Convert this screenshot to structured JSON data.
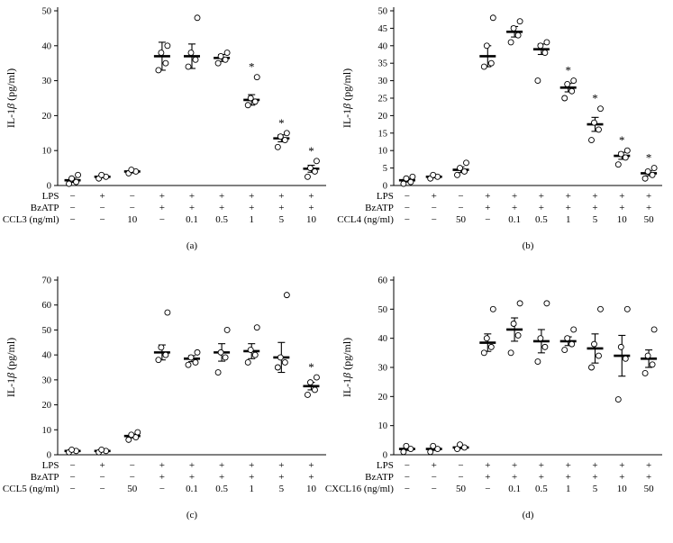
{
  "figure": {
    "background": "#ffffff",
    "ink_color": "#000000",
    "sig_marker": "*",
    "sig_color": "#555555"
  },
  "chart_data": [
    {
      "type": "scatter",
      "label": "(a)",
      "ylabel": "IL-1β (pg/ml)",
      "ymax": 50,
      "ystep": 10,
      "rows": [
        {
          "label": "LPS",
          "values": [
            "−",
            "+",
            "−",
            "+",
            "+",
            "+",
            "+",
            "+",
            "+"
          ]
        },
        {
          "label": "BzATP",
          "values": [
            "−",
            "−",
            "−",
            "+",
            "+",
            "+",
            "+",
            "+",
            "+"
          ]
        },
        {
          "label": "CCL3 (ng/ml)",
          "values": [
            "−",
            "−",
            "10",
            "−",
            "0.1",
            "0.5",
            "1",
            "5",
            "10"
          ]
        }
      ],
      "groups": [
        {
          "mean": 1.5,
          "err": 0.6,
          "points": [
            0.5,
            1,
            2,
            3
          ],
          "sig": false
        },
        {
          "mean": 2.5,
          "err": 0.3,
          "points": [
            2,
            2.5,
            3
          ],
          "sig": false
        },
        {
          "mean": 4,
          "err": 0.4,
          "points": [
            3.5,
            4,
            4.5
          ],
          "sig": false
        },
        {
          "mean": 37,
          "err": 4,
          "points": [
            33,
            35,
            38,
            40
          ],
          "sig": false
        },
        {
          "mean": 37,
          "err": 3.5,
          "points": [
            34,
            36,
            38,
            48
          ],
          "sig": false
        },
        {
          "mean": 36.5,
          "err": 1,
          "points": [
            35,
            36,
            37,
            38
          ],
          "sig": false
        },
        {
          "mean": 24.5,
          "err": 1.5,
          "points": [
            23,
            24,
            25,
            31
          ],
          "sig": true
        },
        {
          "mean": 13.5,
          "err": 1,
          "points": [
            11,
            13,
            14,
            15
          ],
          "sig": true
        },
        {
          "mean": 4.8,
          "err": 1,
          "points": [
            2.5,
            4,
            5,
            7
          ],
          "sig": true
        }
      ]
    },
    {
      "type": "scatter",
      "label": "(b)",
      "ylabel": "IL-1β (pg/ml)",
      "ymax": 50,
      "ystep": 5,
      "rows": [
        {
          "label": "LPS",
          "values": [
            "−",
            "+",
            "−",
            "+",
            "+",
            "+",
            "+",
            "+",
            "+",
            "+"
          ]
        },
        {
          "label": "BzATP",
          "values": [
            "−",
            "−",
            "−",
            "+",
            "+",
            "+",
            "+",
            "+",
            "+",
            "+"
          ]
        },
        {
          "label": "CCL4 (ng/ml)",
          "values": [
            "−",
            "−",
            "50",
            "−",
            "0.1",
            "0.5",
            "1",
            "5",
            "10",
            "50"
          ]
        }
      ],
      "groups": [
        {
          "mean": 1.5,
          "err": 0.5,
          "points": [
            0.5,
            1,
            2,
            2.5
          ],
          "sig": false
        },
        {
          "mean": 2.5,
          "err": 0.3,
          "points": [
            2,
            2.5,
            3
          ],
          "sig": false
        },
        {
          "mean": 4.5,
          "err": 0.8,
          "points": [
            3,
            4,
            5,
            6.5
          ],
          "sig": false
        },
        {
          "mean": 37,
          "err": 3,
          "points": [
            34,
            35,
            40,
            48
          ],
          "sig": false
        },
        {
          "mean": 44,
          "err": 1.5,
          "points": [
            41,
            43,
            45,
            47
          ],
          "sig": false
        },
        {
          "mean": 39,
          "err": 1.5,
          "points": [
            30,
            38,
            40,
            41
          ],
          "sig": false
        },
        {
          "mean": 28,
          "err": 1.2,
          "points": [
            25,
            27,
            29,
            30
          ],
          "sig": true
        },
        {
          "mean": 17.5,
          "err": 2,
          "points": [
            13,
            16,
            18,
            22
          ],
          "sig": true
        },
        {
          "mean": 8.5,
          "err": 1,
          "points": [
            6,
            8,
            9,
            10
          ],
          "sig": true
        },
        {
          "mean": 3.5,
          "err": 0.7,
          "points": [
            2,
            3,
            4,
            5
          ],
          "sig": true
        }
      ]
    },
    {
      "type": "scatter",
      "label": "(c)",
      "ylabel": "IL-1β (pg/ml)",
      "ymax": 70,
      "ystep": 10,
      "rows": [
        {
          "label": "LPS",
          "values": [
            "−",
            "+",
            "−",
            "+",
            "+",
            "+",
            "+",
            "+",
            "+"
          ]
        },
        {
          "label": "BzATP",
          "values": [
            "−",
            "−",
            "−",
            "+",
            "+",
            "+",
            "+",
            "+",
            "+"
          ]
        },
        {
          "label": "CCL5 (ng/ml)",
          "values": [
            "−",
            "−",
            "50",
            "−",
            "0.1",
            "0.5",
            "1",
            "5",
            "10"
          ]
        }
      ],
      "groups": [
        {
          "mean": 1.5,
          "err": 0.3,
          "points": [
            1,
            1.5,
            2
          ],
          "sig": false
        },
        {
          "mean": 1.5,
          "err": 0.3,
          "points": [
            1,
            1.5,
            2
          ],
          "sig": false
        },
        {
          "mean": 7.5,
          "err": 0.7,
          "points": [
            6,
            7,
            8,
            9
          ],
          "sig": false
        },
        {
          "mean": 41,
          "err": 3,
          "points": [
            38,
            40,
            43,
            57
          ],
          "sig": false
        },
        {
          "mean": 38.5,
          "err": 1.2,
          "points": [
            36,
            37,
            39,
            41
          ],
          "sig": false
        },
        {
          "mean": 41,
          "err": 3.5,
          "points": [
            33,
            39,
            41,
            50
          ],
          "sig": false
        },
        {
          "mean": 41.5,
          "err": 3,
          "points": [
            37,
            40,
            42,
            51
          ],
          "sig": false
        },
        {
          "mean": 39,
          "err": 6,
          "points": [
            35,
            37,
            39,
            64
          ],
          "sig": false
        },
        {
          "mean": 27.5,
          "err": 1.5,
          "points": [
            24,
            26,
            29,
            31
          ],
          "sig": true
        }
      ]
    },
    {
      "type": "scatter",
      "label": "(d)",
      "ylabel": "IL-1β (pg/ml)",
      "ymax": 60,
      "ystep": 10,
      "rows": [
        {
          "label": "LPS",
          "values": [
            "−",
            "+",
            "−",
            "+",
            "+",
            "+",
            "+",
            "+",
            "+",
            "+"
          ]
        },
        {
          "label": "BzATP",
          "values": [
            "−",
            "−",
            "−",
            "+",
            "+",
            "+",
            "+",
            "+",
            "+",
            "+"
          ]
        },
        {
          "label": "CXCL16 (ng/ml)",
          "values": [
            "−",
            "−",
            "50",
            "−",
            "0.1",
            "0.5",
            "1",
            "5",
            "10",
            "50"
          ]
        }
      ],
      "groups": [
        {
          "mean": 2,
          "err": 0.5,
          "points": [
            1,
            2,
            3
          ],
          "sig": false
        },
        {
          "mean": 2,
          "err": 0.5,
          "points": [
            1,
            2,
            3
          ],
          "sig": false
        },
        {
          "mean": 2.5,
          "err": 0.4,
          "points": [
            2,
            2.5,
            3.5
          ],
          "sig": false
        },
        {
          "mean": 38.5,
          "err": 3,
          "points": [
            35,
            37,
            40,
            50
          ],
          "sig": false
        },
        {
          "mean": 43,
          "err": 4,
          "points": [
            35,
            41,
            45,
            52
          ],
          "sig": false
        },
        {
          "mean": 39,
          "err": 4,
          "points": [
            32,
            37,
            40,
            52
          ],
          "sig": false
        },
        {
          "mean": 39,
          "err": 1.5,
          "points": [
            36,
            38,
            40,
            43
          ],
          "sig": false
        },
        {
          "mean": 36.5,
          "err": 5,
          "points": [
            30,
            34,
            38,
            50
          ],
          "sig": false
        },
        {
          "mean": 34,
          "err": 7,
          "points": [
            19,
            33,
            37,
            50
          ],
          "sig": false
        },
        {
          "mean": 33,
          "err": 3,
          "points": [
            28,
            31,
            34,
            43
          ],
          "sig": false
        }
      ]
    }
  ]
}
